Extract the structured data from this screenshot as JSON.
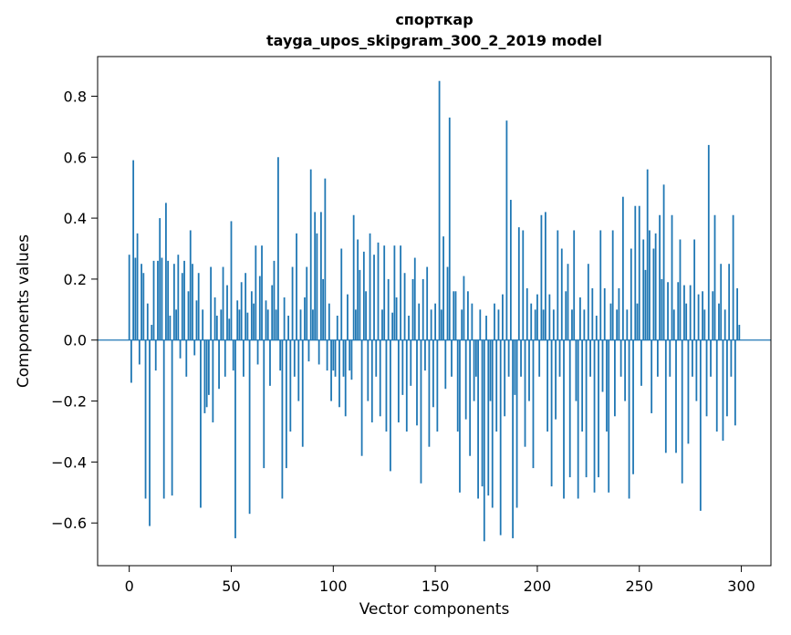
{
  "figure": {
    "title_line1": "спорткар",
    "title_line2": "tayga_upos_skipgram_300_2_2019 model",
    "xlabel": "Vector components",
    "ylabel": "Components values"
  },
  "chart_data": {
    "type": "bar",
    "title": "спорткар — tayga_upos_skipgram_300_2_2019 model",
    "xlabel": "Vector components",
    "ylabel": "Components values",
    "bar_color": "#1f77b4",
    "grid": false,
    "legend": "none",
    "xlim": [
      -15.5,
      314.5
    ],
    "ylim": [
      -0.74,
      0.93
    ],
    "xticks": [
      0,
      50,
      100,
      150,
      200,
      250,
      300
    ],
    "yticks": [
      0.8,
      0.6,
      0.4,
      0.2,
      0.0,
      -0.2,
      -0.4,
      -0.6
    ],
    "x_start": 0,
    "values": [
      0.28,
      -0.14,
      0.59,
      0.27,
      0.35,
      -0.08,
      0.25,
      0.22,
      -0.52,
      0.12,
      -0.61,
      0.05,
      0.26,
      -0.1,
      0.26,
      0.4,
      0.27,
      -0.52,
      0.45,
      0.26,
      0.08,
      -0.51,
      0.25,
      0.1,
      0.28,
      -0.06,
      0.22,
      0.26,
      -0.12,
      0.16,
      0.36,
      0.25,
      -0.05,
      0.13,
      0.22,
      -0.55,
      0.1,
      -0.24,
      -0.22,
      -0.18,
      0.24,
      -0.27,
      0.14,
      0.08,
      -0.16,
      0.1,
      0.24,
      -0.12,
      0.18,
      0.07,
      0.39,
      -0.1,
      -0.65,
      0.13,
      0.1,
      0.19,
      -0.12,
      0.22,
      0.09,
      -0.57,
      0.16,
      0.12,
      0.31,
      -0.08,
      0.21,
      0.31,
      -0.42,
      0.13,
      0.1,
      -0.15,
      0.18,
      0.26,
      0.1,
      0.6,
      -0.1,
      -0.52,
      0.14,
      -0.42,
      0.08,
      -0.3,
      0.24,
      -0.12,
      0.35,
      -0.2,
      0.1,
      -0.35,
      0.14,
      0.24,
      -0.07,
      0.56,
      0.1,
      0.42,
      0.35,
      -0.08,
      0.42,
      0.2,
      0.53,
      -0.1,
      0.12,
      -0.2,
      -0.1,
      -0.12,
      0.08,
      -0.22,
      0.3,
      -0.12,
      -0.25,
      0.15,
      -0.1,
      -0.13,
      0.41,
      0.1,
      0.33,
      0.23,
      -0.38,
      0.29,
      0.16,
      -0.2,
      0.35,
      -0.27,
      0.28,
      -0.12,
      0.32,
      -0.25,
      0.1,
      0.31,
      -0.3,
      0.2,
      -0.43,
      0.09,
      0.31,
      0.14,
      -0.27,
      0.31,
      -0.18,
      0.22,
      -0.3,
      0.08,
      -0.15,
      0.2,
      0.27,
      -0.28,
      0.12,
      -0.47,
      0.2,
      -0.1,
      0.24,
      -0.35,
      0.1,
      -0.22,
      0.12,
      -0.3,
      0.85,
      0.1,
      0.34,
      -0.16,
      0.24,
      0.73,
      -0.12,
      0.16,
      0.16,
      -0.3,
      -0.5,
      0.1,
      0.21,
      -0.26,
      0.16,
      -0.38,
      0.12,
      -0.2,
      -0.12,
      -0.52,
      0.1,
      -0.48,
      -0.66,
      0.08,
      -0.51,
      -0.2,
      -0.55,
      0.12,
      -0.3,
      0.1,
      -0.64,
      0.15,
      -0.25,
      0.72,
      -0.12,
      0.46,
      -0.65,
      -0.18,
      -0.55,
      0.37,
      -0.12,
      0.36,
      -0.35,
      0.17,
      -0.2,
      0.12,
      -0.42,
      0.1,
      0.15,
      -0.12,
      0.41,
      0.1,
      0.42,
      -0.3,
      0.15,
      -0.48,
      0.1,
      -0.26,
      0.36,
      -0.12,
      0.3,
      -0.52,
      0.16,
      0.25,
      -0.45,
      0.1,
      0.36,
      -0.2,
      -0.52,
      0.14,
      -0.3,
      0.1,
      -0.45,
      0.25,
      -0.12,
      0.17,
      -0.5,
      0.08,
      -0.45,
      0.36,
      -0.17,
      0.17,
      -0.3,
      -0.5,
      0.12,
      0.36,
      -0.25,
      0.1,
      0.17,
      -0.12,
      0.47,
      -0.2,
      0.1,
      -0.52,
      0.3,
      -0.44,
      0.44,
      0.12,
      0.44,
      -0.15,
      0.33,
      0.23,
      0.56,
      0.36,
      -0.24,
      0.3,
      0.35,
      -0.12,
      0.41,
      0.2,
      0.51,
      -0.37,
      0.19,
      -0.12,
      0.41,
      0.1,
      -0.37,
      0.19,
      0.33,
      -0.47,
      0.18,
      0.12,
      -0.34,
      0.18,
      -0.12,
      0.33,
      -0.2,
      0.15,
      -0.56,
      0.16,
      0.1,
      -0.25,
      0.64,
      -0.12,
      0.16,
      0.41,
      -0.3,
      0.12,
      0.25,
      -0.33,
      0.1,
      -0.25,
      0.25,
      -0.12,
      0.41,
      -0.28,
      0.17,
      0.05
    ]
  }
}
